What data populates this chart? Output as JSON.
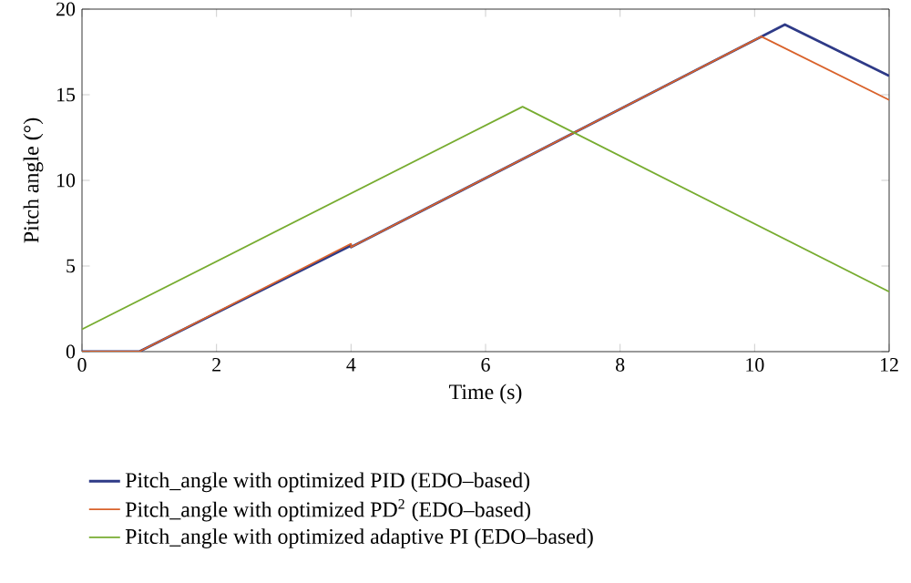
{
  "chart_data": {
    "type": "line",
    "xlabel": "Time (s)",
    "ylabel": "Pitch angle (°)",
    "xlim": [
      0,
      12
    ],
    "ylim": [
      0,
      20
    ],
    "xticks": [
      0,
      2,
      4,
      6,
      8,
      10,
      12
    ],
    "yticks": [
      0,
      5,
      10,
      15,
      20
    ],
    "grid": false,
    "legend": "bottom",
    "series": [
      {
        "name": "Pitch_angle with optimized PID (EDO–based)",
        "color": "#2e3a87",
        "x": [
          0,
          0.85,
          4.0,
          4.0,
          10.45,
          12
        ],
        "values": [
          0,
          0,
          6.2,
          6.1,
          19.1,
          16.1
        ]
      },
      {
        "name": "Pitch_angle with optimized PD$^{2}$ (EDO–based)",
        "color": "#d9622b",
        "x": [
          0,
          0.85,
          4.0,
          4.0,
          10.1,
          12
        ],
        "values": [
          0,
          0,
          6.3,
          6.1,
          18.4,
          14.7
        ]
      },
      {
        "name": "Pitch_angle with optimized adaptive PI (EDO–based)",
        "color": "#77ac30",
        "x": [
          0,
          6.55,
          12
        ],
        "values": [
          1.3,
          14.3,
          3.5
        ]
      }
    ]
  }
}
